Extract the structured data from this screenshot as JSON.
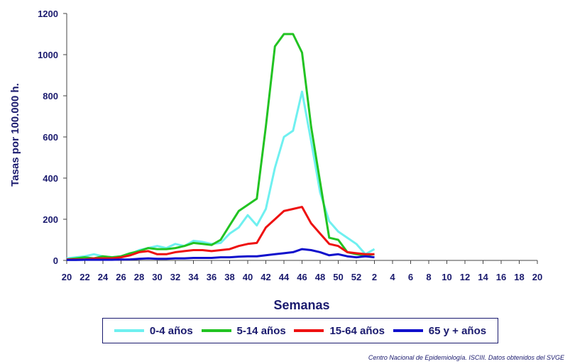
{
  "chart_data": {
    "type": "line",
    "title": "",
    "xlabel": "Semanas",
    "ylabel": "Tasas por 100.000 h.",
    "ylim": [
      0,
      1200
    ],
    "yticks": [
      "0",
      "200",
      "400",
      "600",
      "800",
      "1000",
      "1200"
    ],
    "x_tick_labels": [
      "20",
      "22",
      "24",
      "26",
      "28",
      "30",
      "32",
      "34",
      "36",
      "38",
      "40",
      "42",
      "44",
      "46",
      "48",
      "50",
      "52",
      "2",
      "4",
      "6",
      "8",
      "10",
      "12",
      "14",
      "16",
      "18",
      "20"
    ],
    "categories": [
      "20",
      "21",
      "22",
      "23",
      "24",
      "25",
      "26",
      "27",
      "28",
      "29",
      "30",
      "31",
      "32",
      "33",
      "34",
      "35",
      "36",
      "37",
      "38",
      "39",
      "40",
      "41",
      "42",
      "43",
      "44",
      "45",
      "46",
      "47",
      "48",
      "49",
      "50",
      "51",
      "52",
      "1",
      "2"
    ],
    "series": [
      {
        "name": "0-4 años",
        "color": "#6ff0f0",
        "values": [
          10,
          15,
          20,
          30,
          20,
          15,
          20,
          30,
          50,
          60,
          70,
          60,
          80,
          70,
          95,
          90,
          80,
          85,
          130,
          160,
          220,
          170,
          250,
          450,
          600,
          630,
          820,
          580,
          330,
          190,
          140,
          110,
          80,
          30,
          55
        ]
      },
      {
        "name": "5-14 años",
        "color": "#22c322",
        "values": [
          5,
          10,
          15,
          10,
          20,
          15,
          20,
          35,
          45,
          60,
          55,
          55,
          60,
          70,
          85,
          80,
          75,
          100,
          170,
          240,
          270,
          300,
          650,
          1040,
          1100,
          1100,
          1010,
          650,
          380,
          110,
          100,
          40,
          30,
          25,
          30
        ]
      },
      {
        "name": "15-64 años",
        "color": "#ee1111",
        "values": [
          5,
          5,
          5,
          10,
          10,
          10,
          15,
          25,
          40,
          45,
          30,
          30,
          40,
          45,
          50,
          50,
          45,
          50,
          55,
          70,
          80,
          85,
          160,
          200,
          240,
          250,
          260,
          180,
          130,
          80,
          70,
          40,
          35,
          30,
          30
        ]
      },
      {
        "name": "65 y + años",
        "color": "#1010cc",
        "values": [
          2,
          2,
          3,
          3,
          3,
          3,
          4,
          5,
          8,
          10,
          8,
          8,
          10,
          10,
          12,
          12,
          12,
          15,
          15,
          18,
          20,
          20,
          25,
          30,
          35,
          40,
          55,
          50,
          40,
          25,
          30,
          20,
          15,
          20,
          15
        ]
      }
    ],
    "grid": false,
    "legend_position": "bottom"
  },
  "source_note": "Centro Nacional de Epidemiología. ISCIII. Datos obtenidos del SVGE"
}
